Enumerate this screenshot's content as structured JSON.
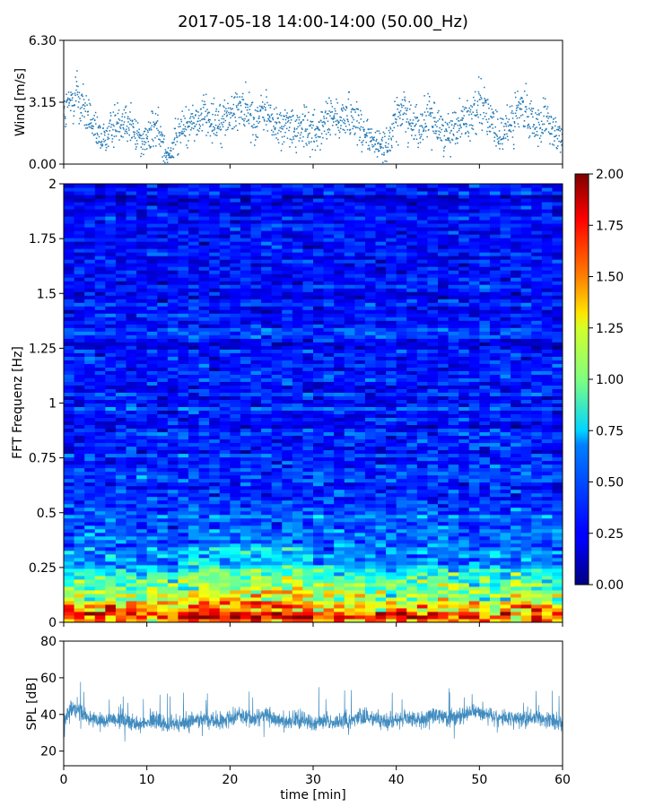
{
  "title": "2017-05-18 14:00-14:00 (50.00_Hz)",
  "chart_data": [
    {
      "type": "scatter",
      "panel": "wind",
      "ylabel": "Wind [m/s]",
      "xlim": [
        0,
        60
      ],
      "ylim": [
        0,
        6.3
      ],
      "yticks": [
        "0.00",
        "3.15",
        "6.30"
      ],
      "series_color": "#1f77b4",
      "envelope": {
        "x": [
          0,
          1,
          1.5,
          2,
          3,
          4,
          5,
          6,
          7,
          8,
          9,
          10,
          11,
          12,
          12.5,
          13,
          14,
          15,
          16,
          17,
          18,
          19,
          20,
          21,
          21.5,
          22,
          23,
          24,
          25,
          26,
          27,
          28,
          29,
          30,
          31,
          32,
          33,
          34,
          35,
          36,
          37,
          38,
          39,
          40,
          41,
          42,
          43,
          44,
          45,
          46,
          47,
          48,
          49,
          50,
          51,
          52,
          53,
          54,
          55,
          56,
          57,
          58,
          59,
          60
        ],
        "y": [
          2.4,
          3.2,
          3.8,
          3.0,
          2.4,
          1.4,
          1.3,
          2.0,
          2.4,
          2.0,
          1.4,
          1.2,
          2.0,
          1.0,
          0.6,
          0.8,
          1.6,
          2.0,
          2.2,
          2.6,
          2.2,
          2.3,
          2.4,
          2.9,
          3.1,
          2.6,
          2.1,
          2.8,
          2.2,
          1.8,
          2.0,
          1.6,
          1.9,
          1.7,
          1.8,
          2.4,
          2.2,
          2.6,
          2.4,
          1.6,
          1.2,
          0.9,
          1.0,
          2.3,
          2.8,
          2.0,
          1.8,
          2.4,
          2.0,
          1.5,
          2.0,
          2.2,
          2.3,
          3.4,
          2.6,
          1.4,
          1.5,
          2.4,
          2.8,
          2.3,
          2.0,
          2.2,
          1.5,
          1.2
        ]
      }
    },
    {
      "type": "heatmap",
      "panel": "spectrogram",
      "ylabel": "FFT Frequenz [Hz]",
      "xlim": [
        0,
        60
      ],
      "ylim": [
        0,
        2
      ],
      "yticks": [
        "0",
        "0.25",
        "0.5",
        "0.75",
        "1",
        "1.25",
        "1.5",
        "1.75",
        "2"
      ],
      "colormap": "jet",
      "clim": [
        0,
        2
      ],
      "colorbar_ticks": [
        "0.00",
        "0.25",
        "0.50",
        "0.75",
        "1.00",
        "1.25",
        "1.50",
        "1.75",
        "2.00"
      ],
      "mean_level_by_frequency": {
        "freq": [
          0,
          0.05,
          0.1,
          0.15,
          0.2,
          0.25,
          0.3,
          0.4,
          0.5,
          0.7,
          1.0,
          1.5,
          2.0
        ],
        "level": [
          1.6,
          1.55,
          1.2,
          0.95,
          0.8,
          0.65,
          0.55,
          0.45,
          0.4,
          0.35,
          0.3,
          0.28,
          0.25
        ]
      }
    },
    {
      "type": "line",
      "panel": "spl",
      "xlabel": "time [min]",
      "ylabel": "SPL [dB]",
      "xlim": [
        0,
        60
      ],
      "ylim": [
        12,
        80
      ],
      "xticks": [
        "0",
        "10",
        "20",
        "30",
        "40",
        "50",
        "60"
      ],
      "yticks": [
        "20",
        "40",
        "60",
        "80"
      ],
      "series_color": "#1f77b4",
      "envelope": {
        "x": [
          0,
          1,
          2,
          3,
          4,
          5,
          6,
          7,
          8,
          9,
          10,
          11,
          12,
          13,
          14,
          15,
          16,
          17,
          18,
          19,
          20,
          21,
          22,
          23,
          24,
          25,
          26,
          27,
          28,
          29,
          30,
          31,
          32,
          33,
          34,
          35,
          36,
          37,
          38,
          39,
          40,
          41,
          42,
          43,
          44,
          45,
          46,
          47,
          48,
          49,
          50,
          51,
          52,
          53,
          54,
          55,
          56,
          57,
          58,
          59,
          60
        ],
        "y": [
          36,
          43,
          41,
          38,
          37,
          36,
          38,
          37,
          36,
          35,
          36,
          37,
          35,
          34,
          35,
          36,
          37,
          37,
          36,
          37,
          37,
          41,
          38,
          37,
          40,
          38,
          37,
          36,
          37,
          37,
          36,
          36,
          35,
          36,
          37,
          38,
          39,
          38,
          37,
          36,
          37,
          38,
          38,
          37,
          39,
          40,
          39,
          38,
          40,
          41,
          42,
          40,
          38,
          37,
          38,
          37,
          38,
          39,
          37,
          36,
          34
        ]
      }
    }
  ]
}
